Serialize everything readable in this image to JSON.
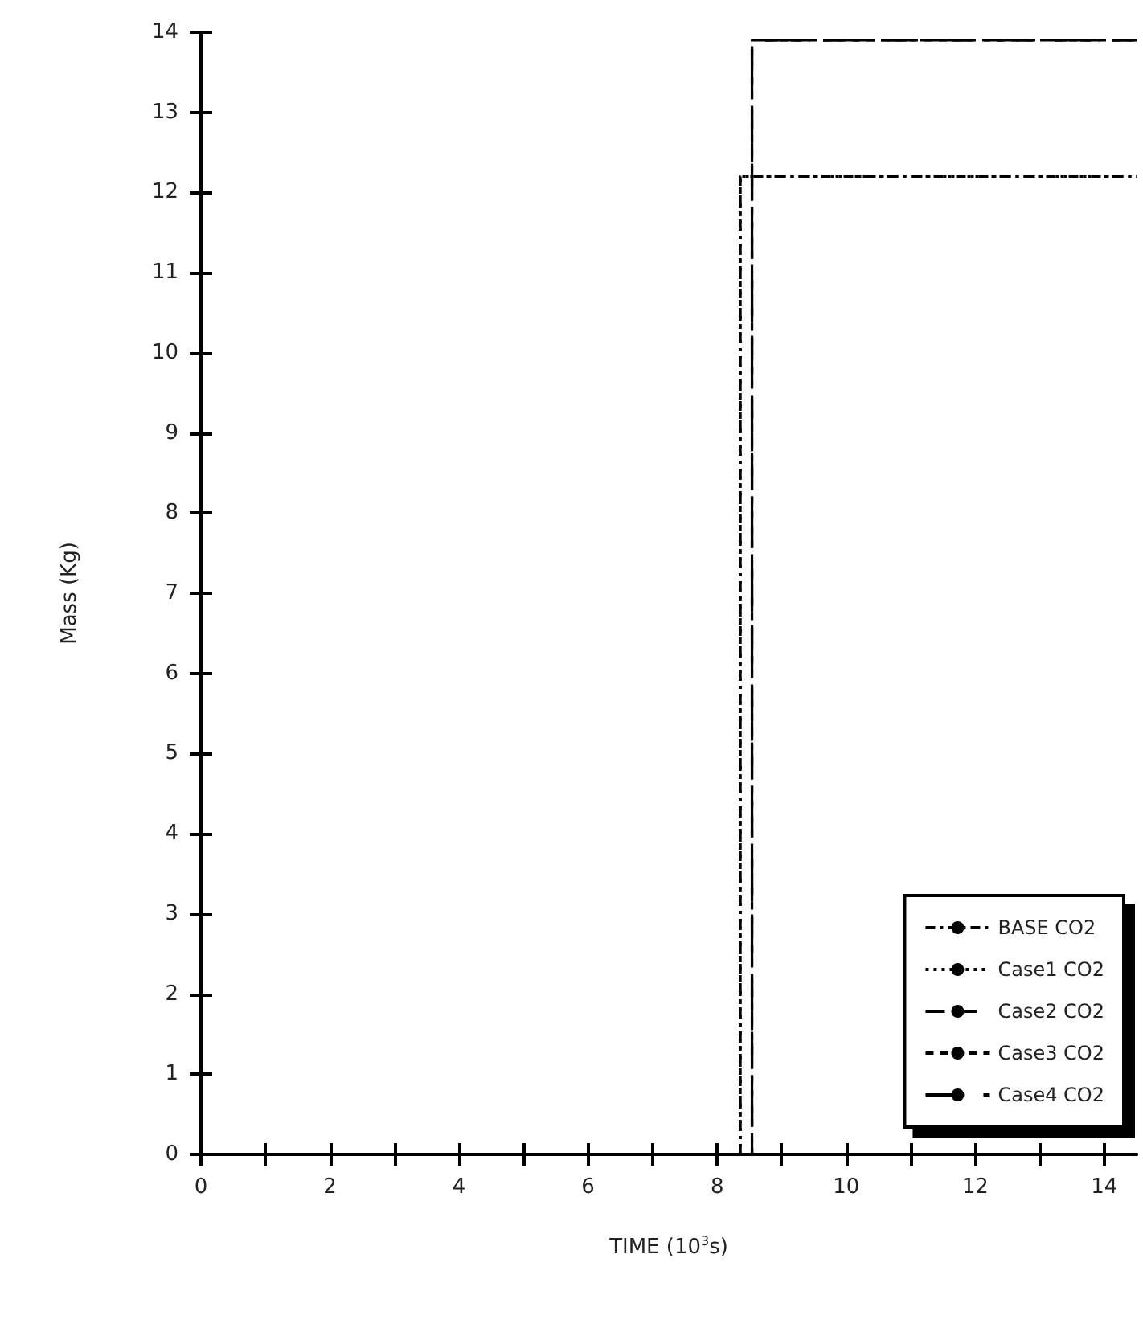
{
  "chart_data": {
    "type": "step",
    "xlabel": "TIME (10$^{3}$s)",
    "ylabel": "Mass (Kg)",
    "xlim": [
      0,
      14.5
    ],
    "ylim": [
      0,
      14
    ],
    "xticks": [
      0,
      {
        "value": 1,
        "label": null
      },
      2,
      {
        "value": 3,
        "label": null
      },
      4,
      {
        "value": 5,
        "label": null
      },
      6,
      {
        "value": 7,
        "label": null
      },
      8,
      {
        "value": 9,
        "label": null
      },
      10,
      {
        "value": 11,
        "label": null
      },
      12,
      {
        "value": 13,
        "label": null
      },
      14
    ],
    "yticks": [
      0,
      1,
      2,
      3,
      4,
      5,
      6,
      7,
      8,
      9,
      10,
      11,
      12,
      13,
      14
    ],
    "grid": false,
    "legend": "bottom right",
    "marker": "none",
    "series": [
      {
        "name": "BASE CO2",
        "color": "#000000",
        "line_style": "dashdot",
        "x": [
          0,
          8.36,
          14.5
        ],
        "values": [
          0,
          12.2,
          12.2
        ]
      },
      {
        "name": "Case1 CO2",
        "color": "#000000",
        "line_style": "dotted",
        "x": [
          0,
          8.36,
          14.5
        ],
        "values": [
          0,
          12.2,
          12.2
        ]
      },
      {
        "name": "Case2 CO2",
        "color": "#000000",
        "line_style": "dashed",
        "x": [
          0,
          8.54,
          14.5
        ],
        "values": [
          0,
          13.9,
          13.9
        ]
      },
      {
        "name": "Case3 CO2",
        "color": "#000000",
        "line_style": "shortdash",
        "x": [
          0,
          8.54,
          14.5
        ],
        "values": [
          0,
          13.9,
          13.9
        ]
      },
      {
        "name": "Case4 CO2",
        "color": "#000000",
        "line_style": "longdash",
        "x": [
          0,
          8.54,
          14.5
        ],
        "values": [
          0,
          13.9,
          13.9
        ]
      }
    ]
  }
}
